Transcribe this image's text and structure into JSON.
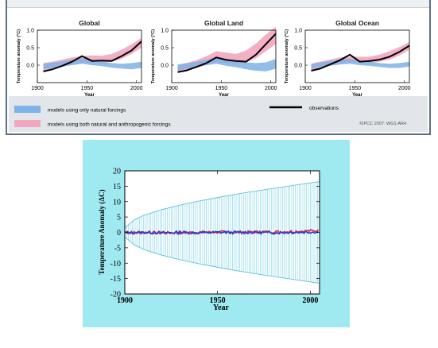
{
  "colors": {
    "natural_band": "#7fb2e6",
    "anthro_band": "#f2a7bf",
    "observations": "#000000",
    "bottom_bg": "#9fe9f1",
    "bottom_band": "#7dd3e6",
    "red_line": "#e0204a",
    "blue_line": "#2a3cc8"
  },
  "top": {
    "ylabel": "Temperature anomaly (°C)",
    "xlabel": "Year",
    "legend": {
      "natural": "models using only natural forcings",
      "anthro": "models using both natural and anthropogenic forcings",
      "observations": "observations",
      "credit": "©IPCC 2007: WG1-AR4"
    }
  },
  "bottom": {
    "xlabel": "Year",
    "ylabel": "Temperature Anomaly (ΔC)"
  },
  "chart_data": [
    {
      "type": "line",
      "title": "Global",
      "xlabel": "Year",
      "ylabel": "Temperature anomaly (°C)",
      "xlim": [
        1900,
        2005
      ],
      "ylim": [
        -0.5,
        1.0
      ],
      "xticks": [
        "1900",
        "1950",
        "2000"
      ],
      "yticks": [
        "1.0",
        "0.5",
        "0.0"
      ],
      "x": [
        1906,
        1915,
        1925,
        1935,
        1945,
        1955,
        1965,
        1975,
        1985,
        1995,
        2005
      ],
      "series": [
        {
          "name": "observations",
          "role": "line",
          "values": [
            -0.18,
            -0.12,
            -0.02,
            0.1,
            0.26,
            0.12,
            0.13,
            0.12,
            0.26,
            0.42,
            0.68
          ]
        },
        {
          "name": "models using both natural and anthropogenic forcings",
          "role": "band",
          "low": [
            -0.15,
            -0.1,
            -0.04,
            0.02,
            0.06,
            0.08,
            0.06,
            0.1,
            0.18,
            0.32,
            0.5
          ],
          "high": [
            0.06,
            0.1,
            0.16,
            0.22,
            0.26,
            0.28,
            0.27,
            0.32,
            0.44,
            0.6,
            0.78
          ]
        },
        {
          "name": "models using only natural forcings",
          "role": "band",
          "low": [
            -0.12,
            -0.08,
            -0.04,
            0.0,
            0.04,
            0.0,
            -0.03,
            -0.07,
            -0.1,
            -0.12,
            -0.08
          ],
          "high": [
            0.04,
            0.07,
            0.11,
            0.16,
            0.2,
            0.14,
            0.1,
            0.06,
            0.04,
            0.06,
            0.1
          ]
        }
      ]
    },
    {
      "type": "line",
      "title": "Global Land",
      "xlabel": "Year",
      "ylabel": "Temperature anomaly (°C)",
      "xlim": [
        1900,
        2005
      ],
      "ylim": [
        -0.5,
        1.0
      ],
      "xticks": [
        "1900",
        "1950",
        "2000"
      ],
      "yticks": [
        "1.0",
        "0.5",
        "0.0"
      ],
      "x": [
        1906,
        1915,
        1925,
        1935,
        1945,
        1955,
        1965,
        1975,
        1985,
        1995,
        2005
      ],
      "series": [
        {
          "name": "observations",
          "role": "line",
          "values": [
            -0.2,
            -0.15,
            -0.05,
            0.06,
            0.22,
            0.15,
            0.12,
            0.1,
            0.3,
            0.6,
            0.9
          ]
        },
        {
          "name": "models using both natural and anthropogenic forcings",
          "role": "band",
          "low": [
            -0.22,
            -0.16,
            -0.08,
            0.0,
            0.08,
            0.06,
            0.04,
            0.08,
            0.2,
            0.4,
            0.6
          ],
          "high": [
            0.0,
            0.06,
            0.14,
            0.26,
            0.4,
            0.36,
            0.32,
            0.42,
            0.62,
            0.88,
            1.1
          ]
        },
        {
          "name": "models using only natural forcings",
          "role": "band",
          "low": [
            -0.16,
            -0.1,
            -0.06,
            0.0,
            0.04,
            -0.02,
            -0.06,
            -0.12,
            -0.16,
            -0.18,
            -0.1
          ],
          "high": [
            0.02,
            0.06,
            0.1,
            0.16,
            0.22,
            0.16,
            0.12,
            0.08,
            0.06,
            0.08,
            0.18
          ]
        }
      ]
    },
    {
      "type": "line",
      "title": "Global Ocean",
      "xlabel": "Year",
      "ylabel": "Temperature anomaly (°C)",
      "xlim": [
        1900,
        2005
      ],
      "ylim": [
        -0.5,
        1.0
      ],
      "xticks": [
        "1900",
        "1950",
        "2000"
      ],
      "yticks": [
        "1.0",
        "0.5",
        "0.0"
      ],
      "x": [
        1906,
        1915,
        1925,
        1935,
        1945,
        1955,
        1965,
        1975,
        1985,
        1995,
        2005
      ],
      "series": [
        {
          "name": "observations",
          "role": "line",
          "values": [
            -0.16,
            -0.1,
            0.02,
            0.14,
            0.3,
            0.1,
            0.12,
            0.16,
            0.24,
            0.38,
            0.56
          ]
        },
        {
          "name": "models using both natural and anthropogenic forcings",
          "role": "band",
          "low": [
            -0.14,
            -0.08,
            -0.02,
            0.04,
            0.08,
            0.08,
            0.06,
            0.1,
            0.16,
            0.28,
            0.44
          ],
          "high": [
            0.04,
            0.1,
            0.16,
            0.22,
            0.24,
            0.24,
            0.24,
            0.3,
            0.4,
            0.52,
            0.66
          ]
        },
        {
          "name": "models using only natural forcings",
          "role": "band",
          "low": [
            -0.1,
            -0.06,
            -0.02,
            0.02,
            0.04,
            0.0,
            -0.02,
            -0.05,
            -0.08,
            -0.08,
            -0.04
          ],
          "high": [
            0.04,
            0.08,
            0.12,
            0.16,
            0.18,
            0.12,
            0.1,
            0.06,
            0.04,
            0.06,
            0.1
          ]
        }
      ]
    },
    {
      "type": "line",
      "xlabel": "Year",
      "ylabel": "Temperature Anomaly (ΔC)",
      "xlim": [
        1900,
        2005
      ],
      "ylim": [
        -20,
        20
      ],
      "xticks": [
        "1900",
        "1950",
        "2000"
      ],
      "yticks": [
        "20",
        "15",
        "10",
        "5",
        "0",
        "-5",
        "-10",
        "-15",
        "-20"
      ],
      "grid": false,
      "x": [
        1900,
        1905,
        1910,
        1920,
        1930,
        1940,
        1950,
        1960,
        1970,
        1980,
        1990,
        2000,
        2005
      ],
      "series": [
        {
          "role": "band",
          "low": [
            -1.5,
            -4.0,
            -5.5,
            -7.4,
            -8.9,
            -10.2,
            -11.3,
            -12.4,
            -13.4,
            -14.3,
            -15.2,
            -16.1,
            -16.5
          ],
          "high": [
            1.5,
            4.0,
            5.5,
            7.4,
            8.9,
            10.2,
            11.3,
            12.4,
            13.4,
            14.3,
            15.2,
            16.1,
            16.5
          ]
        },
        {
          "role": "line",
          "color": "red",
          "values": [
            0.0,
            -0.1,
            0.0,
            -0.2,
            -0.1,
            0.0,
            0.1,
            0.0,
            0.1,
            0.2,
            0.3,
            0.5,
            0.6
          ]
        },
        {
          "role": "line",
          "color": "blue",
          "values": [
            0.0,
            -0.1,
            0.0,
            -0.1,
            0.0,
            -0.1,
            0.0,
            0.0,
            0.0,
            -0.1,
            0.0,
            0.1,
            0.2
          ]
        }
      ]
    }
  ]
}
